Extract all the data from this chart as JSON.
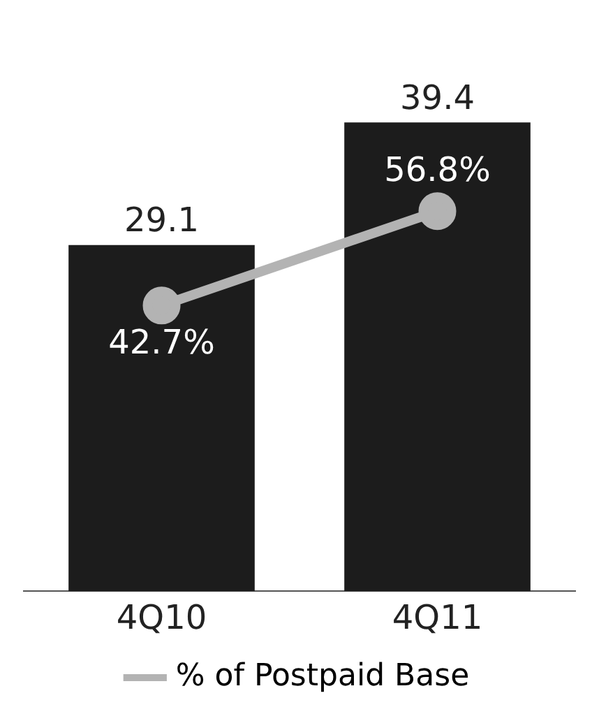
{
  "chart_data": {
    "type": "bar",
    "categories": [
      "4Q10",
      "4Q11"
    ],
    "series": [
      {
        "color": "#1c1c1c",
        "values": [
          29.1,
          39.4
        ]
      },
      {
        "type": "line",
        "name": "% of Postpaid Base",
        "color": "#b3b3b3",
        "axis": "y2",
        "values": [
          42.7,
          56.8
        ],
        "value_labels": [
          "42.7%",
          "56.8%"
        ]
      }
    ],
    "data_labels": true,
    "legend": "bottom",
    "marker": "circle",
    "line_style": "solid",
    "grid": false,
    "tick_labels": "x"
  }
}
